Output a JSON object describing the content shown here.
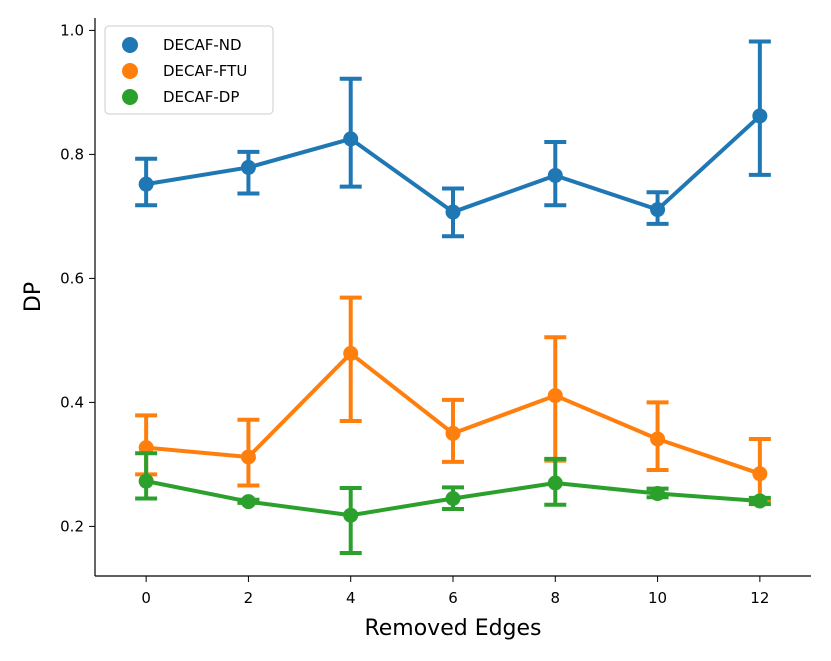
{
  "chart_data": {
    "type": "line",
    "x": [
      0,
      2,
      4,
      6,
      8,
      10,
      12
    ],
    "xticks": [
      "0",
      "2",
      "4",
      "6",
      "8",
      "10",
      "12"
    ],
    "yticks": [
      "0.2",
      "0.4",
      "0.6",
      "0.8",
      "1.0"
    ],
    "xlabel": "Removed Edges",
    "ylabel": "DP",
    "xlim": [
      -1,
      13
    ],
    "ylim": [
      0.12,
      1.02
    ],
    "grid": false,
    "legend_position": "top-left",
    "series": [
      {
        "name": "DECAF-ND",
        "color": "#1f77b4",
        "values": [
          0.752,
          0.779,
          0.825,
          0.707,
          0.766,
          0.711,
          0.862
        ],
        "err_low": [
          0.718,
          0.737,
          0.748,
          0.668,
          0.718,
          0.688,
          0.767
        ],
        "err_high": [
          0.793,
          0.804,
          0.922,
          0.745,
          0.82,
          0.739,
          0.982
        ]
      },
      {
        "name": "DECAF-FTU",
        "color": "#ff7f0e",
        "values": [
          0.327,
          0.312,
          0.479,
          0.35,
          0.411,
          0.341,
          0.285
        ],
        "err_low": [
          0.284,
          0.266,
          0.37,
          0.304,
          0.306,
          0.291,
          0.241
        ],
        "err_high": [
          0.379,
          0.372,
          0.569,
          0.404,
          0.505,
          0.4,
          0.341
        ]
      },
      {
        "name": "DECAF-DP",
        "color": "#2ca02c",
        "values": [
          0.273,
          0.24,
          0.218,
          0.245,
          0.27,
          0.253,
          0.241
        ],
        "err_low": [
          0.245,
          0.238,
          0.157,
          0.228,
          0.235,
          0.247,
          0.236
        ],
        "err_high": [
          0.318,
          0.243,
          0.262,
          0.263,
          0.309,
          0.261,
          0.246
        ]
      }
    ]
  }
}
